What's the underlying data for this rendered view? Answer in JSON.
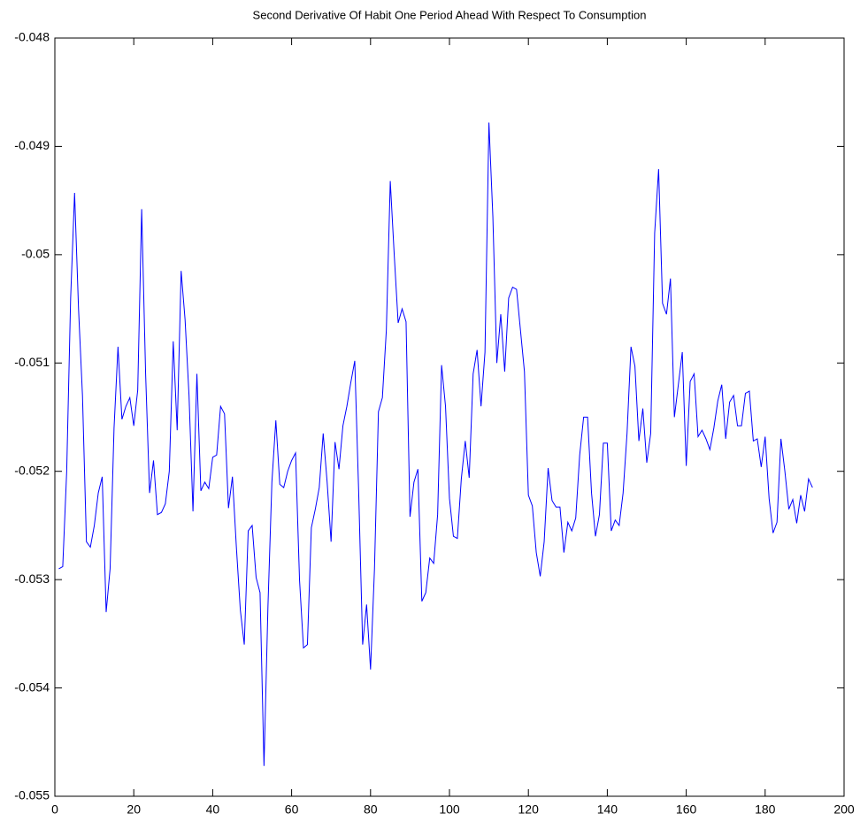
{
  "chart_data": {
    "type": "line",
    "title": "Second Derivative Of Habit One Period Ahead With Respect To Consumption",
    "color": "#0000ff",
    "x": [
      1,
      2,
      3,
      4,
      5,
      6,
      7,
      8,
      9,
      10,
      11,
      12,
      13,
      14,
      15,
      16,
      17,
      18,
      19,
      20,
      21,
      22,
      23,
      24,
      25,
      26,
      27,
      28,
      29,
      30,
      31,
      32,
      33,
      34,
      35,
      36,
      37,
      38,
      39,
      40,
      41,
      42,
      43,
      44,
      45,
      46,
      47,
      48,
      49,
      50,
      51,
      52,
      53,
      54,
      55,
      56,
      57,
      58,
      59,
      60,
      61,
      62,
      63,
      64,
      65,
      66,
      67,
      68,
      69,
      70,
      71,
      72,
      73,
      74,
      75,
      76,
      77,
      78,
      79,
      80,
      81,
      82,
      83,
      84,
      85,
      86,
      87,
      88,
      89,
      90,
      91,
      92,
      93,
      94,
      95,
      96,
      97,
      98,
      99,
      100,
      101,
      102,
      103,
      104,
      105,
      106,
      107,
      108,
      109,
      110,
      111,
      112,
      113,
      114,
      115,
      116,
      117,
      118,
      119,
      120,
      121,
      122,
      123,
      124,
      125,
      126,
      127,
      128,
      129,
      130,
      131,
      132,
      133,
      134,
      135,
      136,
      137,
      138,
      139,
      140,
      141,
      142,
      143,
      144,
      145,
      146,
      147,
      148,
      149,
      150,
      151,
      152,
      153,
      154,
      155,
      156,
      157,
      158,
      159,
      160,
      161,
      162,
      163,
      164,
      165,
      166,
      167,
      168,
      169,
      170,
      171,
      172,
      173,
      174,
      175,
      176,
      177,
      178,
      179,
      180,
      181,
      182,
      183,
      184,
      185,
      186,
      187,
      188,
      189,
      190,
      191,
      192
    ],
    "values": [
      -0.0529,
      -0.05288,
      -0.052,
      -0.0504,
      -0.04943,
      -0.0505,
      -0.0513,
      -0.05265,
      -0.0527,
      -0.0525,
      -0.0522,
      -0.05205,
      -0.0533,
      -0.0529,
      -0.0516,
      -0.05085,
      -0.05152,
      -0.0514,
      -0.05132,
      -0.05158,
      -0.05125,
      -0.04958,
      -0.0511,
      -0.0522,
      -0.0519,
      -0.0524,
      -0.05238,
      -0.0523,
      -0.052,
      -0.0508,
      -0.05162,
      -0.05015,
      -0.0506,
      -0.0513,
      -0.05237,
      -0.0511,
      -0.05218,
      -0.0521,
      -0.05216,
      -0.05187,
      -0.05185,
      -0.0514,
      -0.05147,
      -0.05234,
      -0.05205,
      -0.0527,
      -0.05328,
      -0.0536,
      -0.05255,
      -0.0525,
      -0.05298,
      -0.05312,
      -0.05472,
      -0.05325,
      -0.0521,
      -0.05153,
      -0.05212,
      -0.05215,
      -0.052,
      -0.0519,
      -0.05183,
      -0.053,
      -0.05363,
      -0.0536,
      -0.05252,
      -0.05235,
      -0.05215,
      -0.05165,
      -0.0521,
      -0.05265,
      -0.05173,
      -0.05198,
      -0.05158,
      -0.0514,
      -0.05118,
      -0.05098,
      -0.0522,
      -0.0536,
      -0.05323,
      -0.05383,
      -0.0529,
      -0.05145,
      -0.05132,
      -0.0507,
      -0.04932,
      -0.05,
      -0.05063,
      -0.0505,
      -0.05062,
      -0.05242,
      -0.0521,
      -0.05198,
      -0.0532,
      -0.05312,
      -0.0528,
      -0.05285,
      -0.0524,
      -0.05102,
      -0.0514,
      -0.05225,
      -0.0526,
      -0.05262,
      -0.05207,
      -0.05172,
      -0.05206,
      -0.0511,
      -0.05088,
      -0.0514,
      -0.0509,
      -0.04878,
      -0.04965,
      -0.051,
      -0.05055,
      -0.05108,
      -0.0504,
      -0.0503,
      -0.05032,
      -0.0507,
      -0.05108,
      -0.05222,
      -0.05232,
      -0.05275,
      -0.05297,
      -0.05265,
      -0.05197,
      -0.05227,
      -0.05233,
      -0.05233,
      -0.05275,
      -0.05247,
      -0.05255,
      -0.05243,
      -0.05185,
      -0.0515,
      -0.0515,
      -0.0522,
      -0.0526,
      -0.0524,
      -0.05174,
      -0.05174,
      -0.05255,
      -0.05245,
      -0.0525,
      -0.0522,
      -0.05165,
      -0.05085,
      -0.05103,
      -0.05172,
      -0.05142,
      -0.05192,
      -0.05165,
      -0.0498,
      -0.04921,
      -0.05045,
      -0.05055,
      -0.05022,
      -0.0515,
      -0.0512,
      -0.0509,
      -0.05195,
      -0.05117,
      -0.0511,
      -0.05168,
      -0.05162,
      -0.0517,
      -0.0518,
      -0.0516,
      -0.05135,
      -0.0512,
      -0.0517,
      -0.05136,
      -0.0513,
      -0.05158,
      -0.05158,
      -0.05128,
      -0.05126,
      -0.05172,
      -0.0517,
      -0.05196,
      -0.05168,
      -0.05225,
      -0.05257,
      -0.05247,
      -0.0517,
      -0.052,
      -0.05235,
      -0.05226,
      -0.05248,
      -0.05222,
      -0.05237,
      -0.05207,
      -0.05215
    ],
    "xlim": [
      0,
      200
    ],
    "xticks": [
      0,
      20,
      40,
      60,
      80,
      100,
      120,
      140,
      160,
      180,
      200
    ],
    "ylim": [
      -0.055,
      -0.048
    ],
    "yticks": [
      -0.055,
      -0.054,
      -0.053,
      -0.052,
      -0.051,
      -0.05,
      -0.049,
      -0.048
    ]
  }
}
